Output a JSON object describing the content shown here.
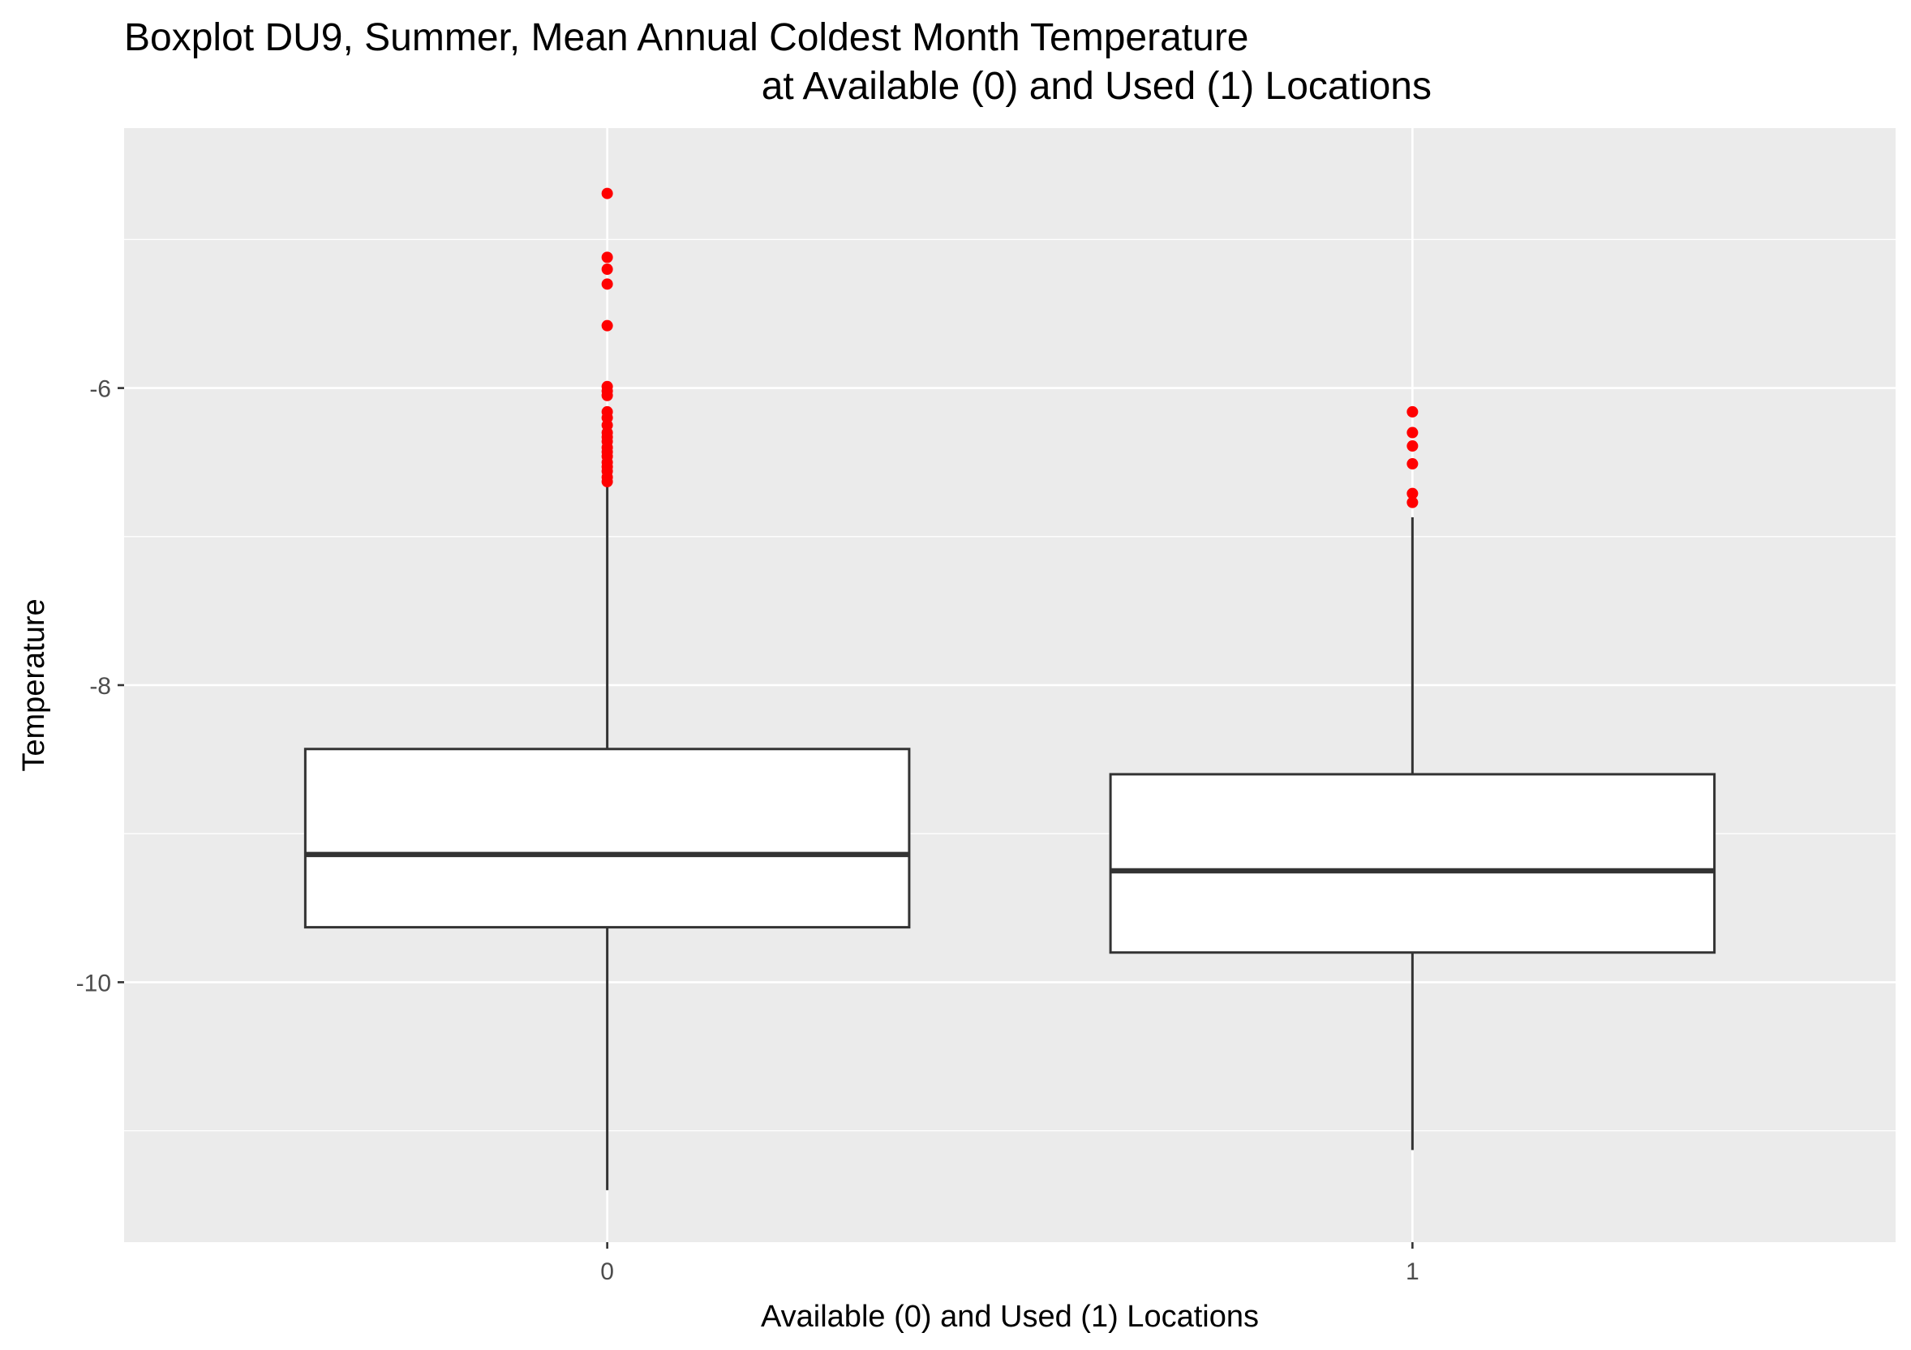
{
  "chart_data": {
    "type": "box",
    "title_line1": "Boxplot DU9, Summer, Mean Annual Coldest Month Temperature",
    "title_line2": "at Available (0) and Used (1) Locations",
    "xlabel": "Available (0) and Used (1) Locations",
    "ylabel": "Temperature",
    "ylim": [
      -11.75,
      -4.25
    ],
    "y_major_ticks": [
      -10,
      -8,
      -6
    ],
    "y_minor_ticks": [
      -11,
      -9,
      -7,
      -5
    ],
    "y_tick_labels": [
      "-10",
      "-8",
      "-6"
    ],
    "grid": true,
    "panel_color": "#ebebeb",
    "outlier_color": "#ff0000",
    "categories": [
      "0",
      "1"
    ],
    "boxes": [
      {
        "category": "0",
        "whisker_low": -11.4,
        "q1": -9.63,
        "median": -9.14,
        "q3": -8.43,
        "whisker_high": -6.6,
        "outliers": [
          -4.69,
          -5.12,
          -5.2,
          -5.3,
          -5.58,
          -5.99,
          -6.02,
          -6.05,
          -6.16,
          -6.2,
          -6.25,
          -6.3,
          -6.33,
          -6.36,
          -6.4,
          -6.43,
          -6.46,
          -6.5,
          -6.53,
          -6.56,
          -6.6,
          -6.63
        ]
      },
      {
        "category": "1",
        "whisker_low": -11.13,
        "q1": -9.8,
        "median": -9.25,
        "q3": -8.6,
        "whisker_high": -6.87,
        "outliers": [
          -6.16,
          -6.3,
          -6.39,
          -6.51,
          -6.71,
          -6.77
        ]
      }
    ]
  }
}
